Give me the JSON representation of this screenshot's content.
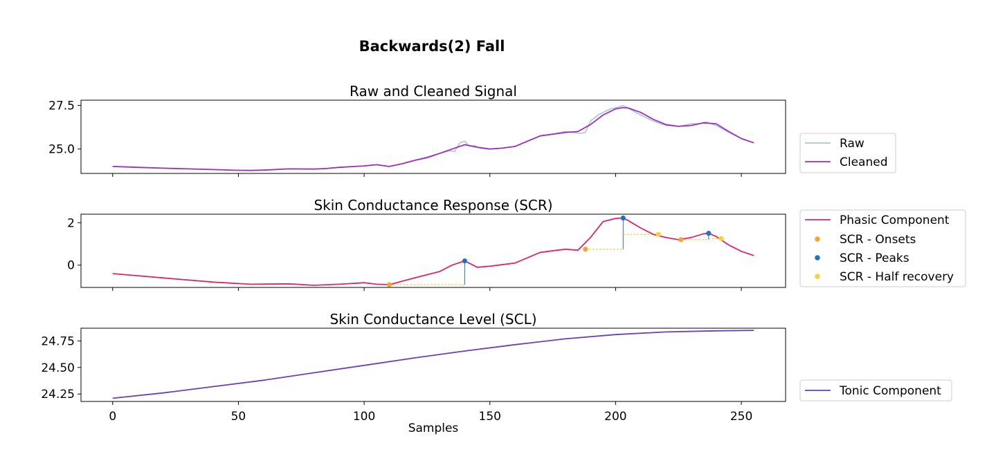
{
  "figure": {
    "title": "Backwards(2) Fall"
  },
  "chart_data": [
    {
      "type": "line",
      "title": "Raw and Cleaned Signal",
      "xlabel": "",
      "ylabel": "",
      "xlim": [
        -12.6,
        267.6
      ],
      "ylim": [
        23.6,
        27.8
      ],
      "yticks": [
        25.0,
        27.5
      ],
      "ytick_labels": [
        "25.0",
        "27.5"
      ],
      "legend_placement": "right, lower",
      "series": [
        {
          "name": "Raw",
          "color": "#a8c4e0",
          "x": [
            0,
            10,
            20,
            30,
            40,
            50,
            55,
            60,
            70,
            80,
            85,
            90,
            100,
            105,
            110,
            115,
            120,
            125,
            130,
            134,
            136,
            138,
            140,
            142,
            144,
            146,
            150,
            155,
            160,
            165,
            170,
            175,
            180,
            183,
            186,
            188,
            190,
            193,
            195,
            198,
            201,
            203,
            205,
            208,
            210,
            215,
            220,
            225,
            230,
            233,
            236,
            240,
            245,
            250,
            255
          ],
          "y": [
            24.0,
            23.95,
            23.9,
            23.86,
            23.82,
            23.78,
            23.77,
            23.79,
            23.86,
            23.85,
            23.88,
            23.95,
            24.03,
            24.1,
            24.0,
            24.15,
            24.35,
            24.55,
            24.75,
            24.9,
            24.85,
            25.35,
            25.45,
            25.15,
            25.2,
            25.05,
            25.0,
            25.05,
            25.15,
            25.45,
            25.75,
            25.85,
            26.0,
            25.95,
            25.9,
            25.95,
            26.6,
            26.95,
            27.1,
            27.3,
            27.4,
            27.5,
            27.35,
            27.1,
            26.95,
            26.6,
            26.35,
            26.3,
            26.45,
            26.45,
            26.55,
            26.35,
            25.95,
            25.6,
            25.35
          ]
        },
        {
          "name": "Cleaned",
          "color": "#9f2fbb",
          "x": [
            0,
            10,
            20,
            30,
            40,
            50,
            55,
            60,
            70,
            80,
            85,
            90,
            100,
            105,
            110,
            115,
            120,
            125,
            130,
            135,
            140,
            145,
            150,
            155,
            160,
            165,
            170,
            175,
            180,
            185,
            190,
            195,
            200,
            203,
            205,
            210,
            215,
            220,
            225,
            230,
            235,
            240,
            245,
            250,
            255
          ],
          "y": [
            24.0,
            23.95,
            23.9,
            23.86,
            23.82,
            23.78,
            23.77,
            23.79,
            23.86,
            23.85,
            23.88,
            23.95,
            24.03,
            24.1,
            24.0,
            24.15,
            24.35,
            24.5,
            24.75,
            25.0,
            25.25,
            25.1,
            25.0,
            25.05,
            25.15,
            25.45,
            25.75,
            25.85,
            25.95,
            26.0,
            26.4,
            26.95,
            27.3,
            27.38,
            27.35,
            27.1,
            26.7,
            26.4,
            26.3,
            26.35,
            26.5,
            26.45,
            26.0,
            25.6,
            25.35
          ]
        }
      ]
    },
    {
      "type": "line",
      "title": "Skin Conductance Response (SCR)",
      "xlabel": "",
      "ylabel": "",
      "xlim": [
        -12.6,
        267.6
      ],
      "ylim": [
        -1.05,
        2.4
      ],
      "yticks": [
        0,
        2
      ],
      "ytick_labels": [
        "0",
        "2"
      ],
      "legend_placement": "right",
      "series": [
        {
          "name": "Phasic Component",
          "color": "#e0245f",
          "x": [
            0,
            20,
            40,
            55,
            70,
            80,
            90,
            100,
            105,
            110,
            120,
            130,
            135,
            140,
            145,
            150,
            160,
            170,
            180,
            185,
            190,
            195,
            200,
            203,
            205,
            210,
            215,
            220,
            225,
            230,
            235,
            237,
            240,
            245,
            250,
            255
          ],
          "y": [
            -0.4,
            -0.6,
            -0.8,
            -0.9,
            -0.88,
            -0.95,
            -0.9,
            -0.83,
            -0.9,
            -0.92,
            -0.6,
            -0.3,
            0.0,
            0.2,
            -0.1,
            -0.05,
            0.1,
            0.6,
            0.75,
            0.7,
            1.3,
            2.05,
            2.2,
            2.22,
            2.1,
            1.75,
            1.45,
            1.3,
            1.2,
            1.3,
            1.48,
            1.5,
            1.35,
            0.95,
            0.65,
            0.45
          ]
        }
      ],
      "markers": [
        {
          "name": "SCR - Onsets",
          "color": "#f5a431",
          "x": [
            110,
            188,
            226
          ],
          "y": [
            -0.92,
            0.75,
            1.2
          ]
        },
        {
          "name": "SCR - Peaks",
          "color": "#1f73c9",
          "x": [
            140,
            203,
            237
          ],
          "y": [
            0.2,
            2.22,
            1.5
          ]
        },
        {
          "name": "SCR - Half recovery",
          "color": "#f5d33b",
          "x": [
            217,
            242
          ],
          "y": [
            1.45,
            1.25
          ]
        }
      ],
      "amplitude_lines": [
        {
          "x": 140,
          "y0": -0.92,
          "y1": 0.2
        },
        {
          "x": 203,
          "y0": 0.75,
          "y1": 2.22
        },
        {
          "x": 237,
          "y0": 1.2,
          "y1": 1.5
        }
      ],
      "duration_lines": [
        {
          "x0": 110,
          "x1": 140,
          "y": -0.92
        },
        {
          "x0": 188,
          "x1": 203,
          "y": 0.75
        },
        {
          "x0": 203,
          "x1": 217,
          "y": 1.45
        },
        {
          "x0": 226,
          "x1": 237,
          "y": 1.2
        },
        {
          "x0": 237,
          "x1": 242,
          "y": 1.25
        }
      ]
    },
    {
      "type": "line",
      "title": "Skin Conductance Level (SCL)",
      "xlabel": "Samples",
      "ylabel": "",
      "xlim": [
        -12.6,
        267.6
      ],
      "ylim": [
        24.18,
        24.87
      ],
      "xticks": [
        0,
        50,
        100,
        150,
        200,
        250
      ],
      "xtick_labels": [
        "0",
        "50",
        "100",
        "150",
        "200",
        "250"
      ],
      "yticks": [
        24.25,
        24.5,
        24.75
      ],
      "ytick_labels": [
        "24.25",
        "24.50",
        "24.75"
      ],
      "legend_placement": "right, lower",
      "series": [
        {
          "name": "Tonic Component",
          "color": "#6d3bbf",
          "x": [
            0,
            20,
            40,
            60,
            80,
            100,
            120,
            140,
            160,
            180,
            200,
            220,
            240,
            255
          ],
          "y": [
            24.21,
            24.26,
            24.32,
            24.38,
            24.45,
            24.52,
            24.59,
            24.655,
            24.715,
            24.77,
            24.81,
            24.835,
            24.845,
            24.85
          ]
        }
      ]
    }
  ]
}
